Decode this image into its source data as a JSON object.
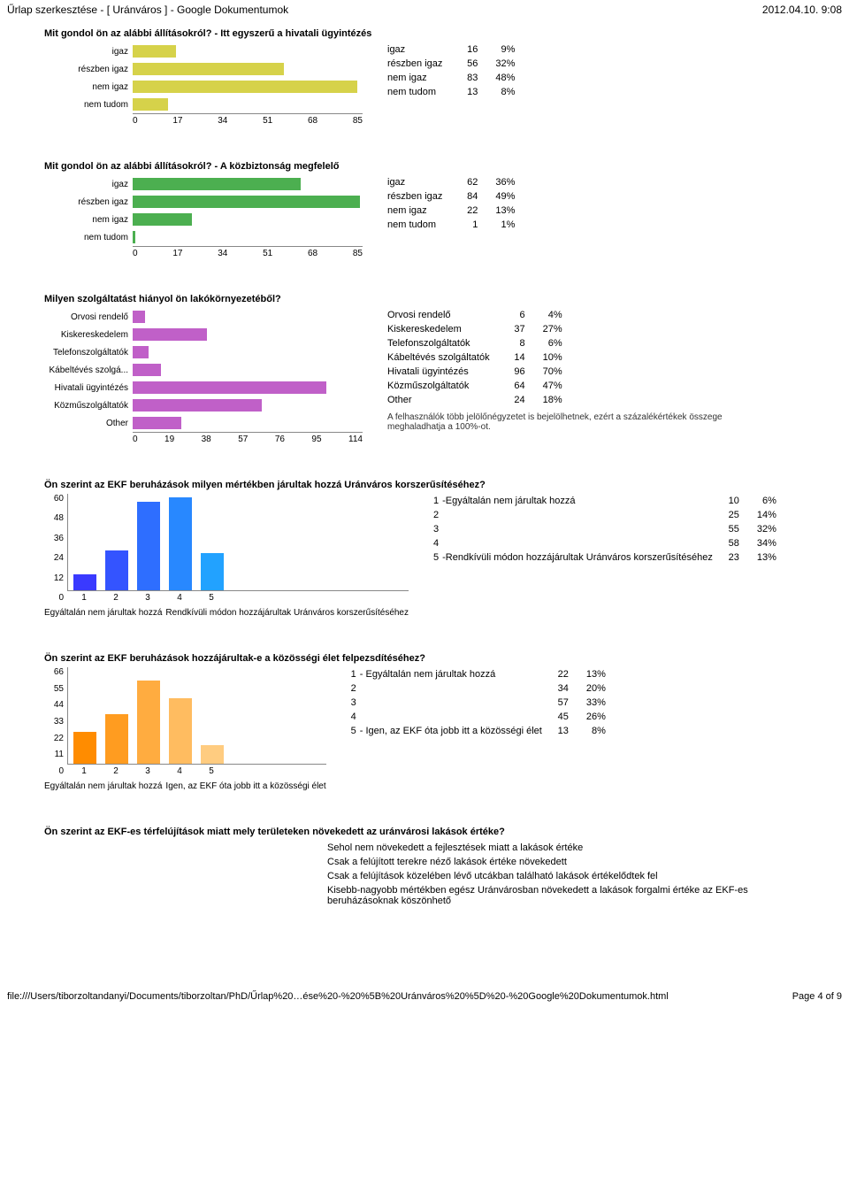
{
  "header": {
    "title": "Űrlap szerkesztése - [ Uránváros ] - Google Dokumentumok",
    "timestamp": "2012.04.10. 9:08"
  },
  "section1": {
    "title": "Mit gondol ön az alábbi állításokról? - Itt egyszerű a hivatali ügyintézés",
    "bar_color": "#d6d24a",
    "xmax": 85,
    "xticks": [
      "0",
      "17",
      "34",
      "51",
      "68",
      "85"
    ],
    "rows": [
      {
        "label": "igaz",
        "value": 16,
        "pct": "9%"
      },
      {
        "label": "részben igaz",
        "value": 56,
        "pct": "32%"
      },
      {
        "label": "nem igaz",
        "value": 83,
        "pct": "48%"
      },
      {
        "label": "nem tudom",
        "value": 13,
        "pct": "8%"
      }
    ]
  },
  "section2": {
    "title": "Mit gondol ön az alábbi állításokról? - A közbiztonság megfelelő",
    "bar_color": "#4caf50",
    "xmax": 85,
    "xticks": [
      "0",
      "17",
      "34",
      "51",
      "68",
      "85"
    ],
    "rows": [
      {
        "label": "igaz",
        "value": 62,
        "pct": "36%"
      },
      {
        "label": "részben igaz",
        "value": 84,
        "pct": "49%"
      },
      {
        "label": "nem igaz",
        "value": 22,
        "pct": "13%"
      },
      {
        "label": "nem tudom",
        "value": 1,
        "pct": "1%"
      }
    ]
  },
  "section3": {
    "title": "Milyen szolgáltatást hiányol ön lakókörnyezetéből?",
    "bar_color": "#c060c8",
    "xmax": 114,
    "xticks": [
      "0",
      "19",
      "38",
      "57",
      "76",
      "95",
      "114"
    ],
    "note": "A felhasználók több jelölőnégyzetet is bejelölhetnek, ezért a százalékértékek összege meghaladhatja a 100%-ot.",
    "chart_labels": [
      "Orvosi rendelő",
      "Kiskereskedelem",
      "Telefonszolgáltatók",
      "Kábeltévés szolgá...",
      "Hivatali ügyintézés",
      "Közműszolgáltatók",
      "Other"
    ],
    "rows": [
      {
        "label": "Orvosi rendelő",
        "value": 6,
        "pct": "4%"
      },
      {
        "label": "Kiskereskedelem",
        "value": 37,
        "pct": "27%"
      },
      {
        "label": "Telefonszolgáltatók",
        "value": 8,
        "pct": "6%"
      },
      {
        "label": "Kábeltévés szolgáltatók",
        "value": 14,
        "pct": "10%"
      },
      {
        "label": "Hivatali ügyintézés",
        "value": 96,
        "pct": "70%"
      },
      {
        "label": "Közműszolgáltatók",
        "value": 64,
        "pct": "47%"
      },
      {
        "label": "Other",
        "value": 24,
        "pct": "18%"
      }
    ]
  },
  "section4": {
    "title": "Ön szerint az EKF beruházások milyen mértékben járultak hozzá Uránváros korszerűsítéséhez?",
    "ymax": 60,
    "yticks": [
      "0",
      "12",
      "24",
      "36",
      "48",
      "60"
    ],
    "xlabels": [
      "1",
      "2",
      "3",
      "4",
      "5"
    ],
    "bar_colors": [
      "#3a3aff",
      "#3454ff",
      "#2e6eff",
      "#2888ff",
      "#22a2ff"
    ],
    "caption_left": "Egyáltalán nem járultak hozzá",
    "caption_right": "Rendkívüli módon hozzájárultak Uránváros korszerűsítéséhez",
    "rows": [
      {
        "n": "1",
        "desc": "-Egyáltalán nem járultak hozzá",
        "value": 10,
        "pct": "6%"
      },
      {
        "n": "2",
        "desc": "",
        "value": 25,
        "pct": "14%"
      },
      {
        "n": "3",
        "desc": "",
        "value": 55,
        "pct": "32%"
      },
      {
        "n": "4",
        "desc": "",
        "value": 58,
        "pct": "34%"
      },
      {
        "n": "5",
        "desc": "-Rendkívüli módon hozzájárultak Uránváros korszerűsítéséhez",
        "value": 23,
        "pct": "13%"
      }
    ]
  },
  "section5": {
    "title": "Ön szerint az EKF beruházások hozzájárultak-e a közösségi élet felpezsdítéséhez?",
    "ymax": 66,
    "yticks": [
      "0",
      "11",
      "22",
      "33",
      "44",
      "55",
      "66"
    ],
    "xlabels": [
      "1",
      "2",
      "3",
      "4",
      "5"
    ],
    "bar_colors": [
      "#ff8c00",
      "#ff9c20",
      "#ffac40",
      "#ffbc60",
      "#ffcc80"
    ],
    "caption_left": "Egyáltalán nem járultak hozzá",
    "caption_right": "Igen, az EKF óta jobb itt a közösségi élet",
    "rows": [
      {
        "n": "1",
        "desc": "-   Egyáltalán nem járultak hozzá",
        "value": 22,
        "pct": "13%"
      },
      {
        "n": "2",
        "desc": "",
        "value": 34,
        "pct": "20%"
      },
      {
        "n": "3",
        "desc": "",
        "value": 57,
        "pct": "33%"
      },
      {
        "n": "4",
        "desc": "",
        "value": 45,
        "pct": "26%"
      },
      {
        "n": "5",
        "desc": "-   Igen, az EKF óta jobb itt a közösségi élet",
        "value": 13,
        "pct": "8%"
      }
    ]
  },
  "section6": {
    "title": "Ön szerint az EKF-es térfelújítások miatt mely területeken növekedett az uránvárosi lakások értéke?",
    "lines": [
      "Sehol nem növekedett a fejlesztések miatt a lakások értéke",
      "Csak a felújított terekre néző lakások értéke növekedett",
      "Csak a felújítások közelében lévő utcákban található lakások értékelődtek fel",
      "Kisebb-nagyobb mértékben egész Uránvárosban növekedett a lakások forgalmi értéke az EKF-es beruházásoknak köszönhető"
    ]
  },
  "footer": {
    "path": "file:///Users/tiborzoltandanyi/Documents/tiborzoltan/PhD/Űrlap%20…ése%20-%20%5B%20Uránváros%20%5D%20-%20Google%20Dokumentumok.html",
    "page": "Page 4 of 9"
  }
}
